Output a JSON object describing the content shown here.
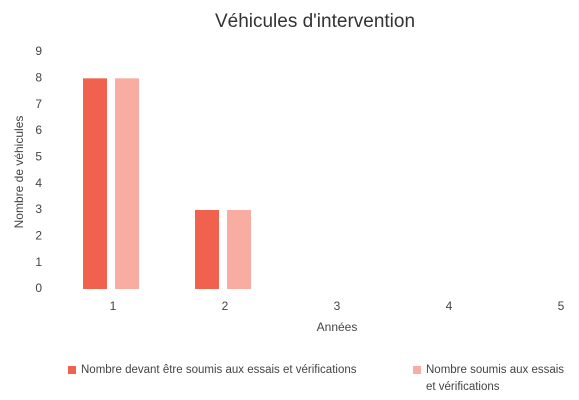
{
  "chart_data": {
    "type": "bar",
    "title": "Véhicules d'intervention",
    "x_label": "Années",
    "y_label": "Nombre de véhicules",
    "categories": [
      "1",
      "2",
      "3",
      "4",
      "5"
    ],
    "series": [
      {
        "name": "Nombre devant être soumis aux essais et vérifications",
        "color": "#f0624d",
        "values": [
          8,
          3,
          0,
          0,
          0
        ]
      },
      {
        "name": "Nombre soumis aux essais et vérifications",
        "color": "#f9aca2",
        "values": [
          8,
          3,
          0,
          0,
          0
        ]
      }
    ],
    "ylim": [
      0,
      9
    ],
    "yticks": [
      0,
      1,
      2,
      3,
      4,
      5,
      6,
      7,
      8,
      9
    ],
    "grid": false
  }
}
